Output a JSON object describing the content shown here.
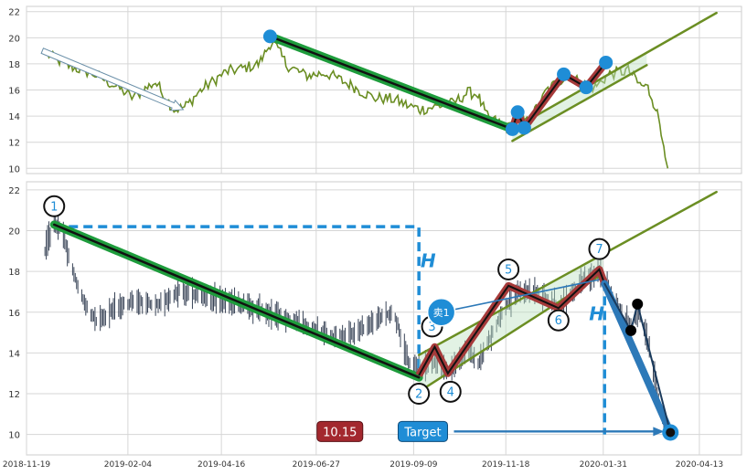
{
  "chart_data": [
    {
      "type": "line",
      "name": "top-price-line",
      "ylim": [
        9.6,
        22.4
      ],
      "yticks": [
        10,
        12,
        14,
        16,
        18,
        20,
        22
      ],
      "colors": {
        "price": "#6b8e23",
        "trend": "#1e9c3c",
        "channel": "#6b8e23",
        "wave": "#a63a3a",
        "point": "#1f8dd6"
      },
      "price_anchors": [
        [
          "2018-12-01",
          19.0
        ],
        [
          "2018-12-20",
          17.9
        ],
        [
          "2019-01-10",
          17.2
        ],
        [
          "2019-01-28",
          16.2
        ],
        [
          "2019-02-08",
          15.4
        ],
        [
          "2019-02-25",
          16.6
        ],
        [
          "2019-03-12",
          14.5
        ],
        [
          "2019-03-20",
          14.7
        ],
        [
          "2019-04-01",
          16.0
        ],
        [
          "2019-04-20",
          17.4
        ],
        [
          "2019-05-01",
          17.6
        ],
        [
          "2019-05-15",
          18.0
        ],
        [
          "2019-05-25",
          19.8
        ],
        [
          "2019-06-05",
          17.9
        ],
        [
          "2019-06-20",
          17.1
        ],
        [
          "2019-07-05",
          17.3
        ],
        [
          "2019-07-25",
          16.3
        ],
        [
          "2019-08-10",
          15.4
        ],
        [
          "2019-08-25",
          15.3
        ],
        [
          "2019-09-05",
          14.8
        ],
        [
          "2019-09-15",
          14.5
        ],
        [
          "2019-10-10",
          15.0
        ],
        [
          "2019-10-20",
          15.8
        ],
        [
          "2019-10-28",
          15.7
        ],
        [
          "2019-11-05",
          13.8
        ],
        [
          "2019-11-12",
          13.6
        ],
        [
          "2019-11-20",
          13.0
        ],
        [
          "2019-11-28",
          14.0
        ],
        [
          "2019-12-05",
          13.5
        ],
        [
          "2019-12-20",
          16.0
        ],
        [
          "2020-01-05",
          17.2
        ],
        [
          "2020-01-15",
          16.5
        ],
        [
          "2020-01-25",
          16.2
        ],
        [
          "2020-02-05",
          17.2
        ],
        [
          "2020-02-20",
          17.5
        ],
        [
          "2020-02-28",
          16.4
        ],
        [
          "2020-03-05",
          16.2
        ],
        [
          "2020-03-12",
          14.5
        ],
        [
          "2020-03-20",
          10.0
        ]
      ],
      "trend_line": [
        [
          "2019-05-23",
          20.1
        ],
        [
          "2019-11-23",
          13.0
        ]
      ],
      "channel_upper": [
        [
          "2019-11-23",
          13.0
        ],
        [
          "2020-04-26",
          21.9
        ]
      ],
      "channel_lower": [
        [
          "2019-11-23",
          12.1
        ],
        [
          "2020-03-04",
          17.9
        ]
      ],
      "wave_points": [
        [
          "2019-11-23",
          13.0
        ],
        [
          "2019-11-27",
          14.3
        ],
        [
          "2019-12-02",
          13.1
        ],
        [
          "2020-01-01",
          17.2
        ],
        [
          "2020-01-18",
          16.2
        ],
        [
          "2020-02-02",
          18.1
        ]
      ],
      "arrow": [
        [
          "2018-12-01",
          19.0
        ],
        [
          "2019-03-18",
          14.5
        ]
      ]
    },
    {
      "type": "line",
      "name": "bottom-candlestick-pattern",
      "ylim": [
        9.0,
        22.4
      ],
      "yticks": [
        10,
        12,
        14,
        16,
        18,
        20,
        22
      ],
      "xlim": [
        "2018-11-19",
        "2020-05-15"
      ],
      "xticks": [
        "2018-11-19",
        "2019-02-04",
        "2019-04-16",
        "2019-06-27",
        "2019-09-09",
        "2019-11-18",
        "2020-01-31",
        "2020-04-13"
      ],
      "colors": {
        "candle": "#3a4558",
        "trend": "#1e9c3c",
        "channel": "#6b8e23",
        "wave": "#a63a3a",
        "blue": "#1f8dd6",
        "dark_blue": "#1a3a5c"
      },
      "candle_anchors": [
        [
          "2018-12-01",
          18.5
        ],
        [
          "2018-12-05",
          19.5
        ],
        [
          "2018-12-10",
          20.3
        ],
        [
          "2018-12-16",
          20.0
        ],
        [
          "2018-12-22",
          18.5
        ],
        [
          "2018-12-28",
          17.3
        ],
        [
          "2019-01-05",
          16.0
        ],
        [
          "2019-01-12",
          15.5
        ],
        [
          "2019-01-25",
          16.2
        ],
        [
          "2019-02-10",
          16.6
        ],
        [
          "2019-02-25",
          16.3
        ],
        [
          "2019-03-15",
          17.0
        ],
        [
          "2019-04-01",
          16.8
        ],
        [
          "2019-04-20",
          16.5
        ],
        [
          "2019-05-10",
          16.2
        ],
        [
          "2019-05-25",
          15.9
        ],
        [
          "2019-06-10",
          15.6
        ],
        [
          "2019-06-25",
          15.2
        ],
        [
          "2019-07-10",
          14.8
        ],
        [
          "2019-07-25",
          15.0
        ],
        [
          "2019-08-05",
          15.3
        ],
        [
          "2019-08-15",
          15.8
        ],
        [
          "2019-08-25",
          16.0
        ],
        [
          "2019-09-05",
          13.5
        ],
        [
          "2019-09-15",
          13.2
        ],
        [
          "2019-09-28",
          13.6
        ],
        [
          "2019-10-05",
          13.0
        ],
        [
          "2019-10-20",
          14.2
        ],
        [
          "2019-10-28",
          13.4
        ],
        [
          "2019-11-15",
          16.0
        ],
        [
          "2019-11-28",
          17.1
        ],
        [
          "2019-12-15",
          16.9
        ],
        [
          "2019-12-28",
          16.2
        ],
        [
          "2020-01-15",
          17.5
        ],
        [
          "2020-01-28",
          18.0
        ],
        [
          "2020-02-10",
          16.5
        ],
        [
          "2020-02-20",
          15.3
        ],
        [
          "2020-02-27",
          16.0
        ],
        [
          "2020-03-05",
          14.5
        ],
        [
          "2020-03-12",
          12.0
        ],
        [
          "2020-03-18",
          10.3
        ]
      ],
      "trend_line": [
        [
          "2018-12-10",
          20.3
        ],
        [
          "2019-09-13",
          12.8
        ]
      ],
      "channel_upper": [
        [
          "2019-09-13",
          13.9
        ],
        [
          "2020-04-26",
          21.9
        ]
      ],
      "channel_lower": [
        [
          "2019-09-13",
          12.1
        ],
        [
          "2020-01-31",
          17.9
        ]
      ],
      "wave_points": [
        [
          "2019-09-13",
          12.9
        ],
        [
          "2019-09-25",
          14.3
        ],
        [
          "2019-10-05",
          13.0
        ],
        [
          "2019-11-20",
          17.3
        ],
        [
          "2019-12-28",
          16.2
        ],
        [
          "2020-01-28",
          18.1
        ],
        [
          "2020-02-01",
          17.4
        ]
      ],
      "labels": [
        {
          "text": "1",
          "x": "2018-12-10",
          "y": 21.2
        },
        {
          "text": "2",
          "x": "2019-09-13",
          "y": 12.0
        },
        {
          "text": "3",
          "x": "2019-09-23",
          "y": 15.3
        },
        {
          "text": "4",
          "x": "2019-10-07",
          "y": 12.1
        },
        {
          "text": "5",
          "x": "2019-11-20",
          "y": 18.1
        },
        {
          "text": "6",
          "x": "2019-12-28",
          "y": 15.6
        },
        {
          "text": "7",
          "x": "2020-01-28",
          "y": 19.1
        }
      ],
      "dashed_box": {
        "x1": "2018-12-10",
        "x2": "2019-09-13",
        "y": 20.2,
        "y_bottom": 12.9
      },
      "dashed_drop": {
        "x": "2020-02-01",
        "y_top": 17.5,
        "y_bottom": 10.0
      },
      "h_labels": [
        {
          "text": "H",
          "x": "2019-09-20",
          "y": 18.2
        },
        {
          "text": "H",
          "x": "2020-01-26",
          "y": 15.6
        }
      ],
      "sell": {
        "text": "卖1",
        "x": "2019-09-30",
        "y": 16.0,
        "line_to": [
          "2020-01-28",
          17.6
        ]
      },
      "price_box": {
        "text": "10.15",
        "x": "2019-07-15",
        "y": 10.15,
        "color": "#a3282e"
      },
      "target": {
        "text": "Target",
        "x": "2019-09-16",
        "y": 10.15,
        "arrow_to": [
          "2020-03-20",
          10.15
        ],
        "color": "#1f8dd6"
      },
      "fall_lines": [
        {
          "from": [
            "2020-02-01",
            17.4
          ],
          "to": [
            "2020-03-22",
            10.1
          ],
          "width": 8,
          "color": "#2d79b8"
        },
        {
          "from": [
            "2020-02-01",
            17.4
          ],
          "to": [
            "2020-02-21",
            15.1
          ],
          "width": 2,
          "color": "#1a3a5c"
        },
        {
          "from": [
            "2020-02-21",
            15.1
          ],
          "to": [
            "2020-02-26",
            16.4
          ],
          "width": 2,
          "color": "#1a3a5c"
        },
        {
          "from": [
            "2020-02-26",
            16.4
          ],
          "to": [
            "2020-03-22",
            10.1
          ],
          "width": 2,
          "color": "#1a3a5c"
        }
      ],
      "black_dots": [
        [
          "2020-02-21",
          15.1
        ],
        [
          "2020-02-26",
          16.4
        ],
        [
          "2020-03-22",
          10.1
        ]
      ],
      "target_dot": [
        "2020-03-22",
        10.1
      ]
    }
  ]
}
